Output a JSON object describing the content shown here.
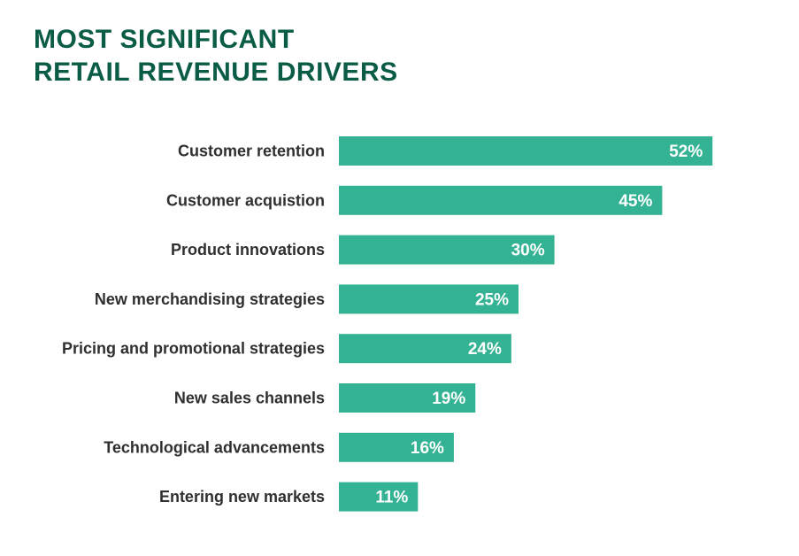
{
  "title_lines": [
    "MOST SIGNIFICANT",
    "RETAIL REVENUE DRIVERS"
  ],
  "colors": {
    "title": "#0b5c45",
    "bar": "#34b394",
    "label": "#2f2f2f",
    "value_text": "#ffffff"
  },
  "chart_data": {
    "type": "bar",
    "orientation": "horizontal",
    "title": "MOST SIGNIFICANT RETAIL REVENUE DRIVERS",
    "categories": [
      "Customer retention",
      "Customer acquistion",
      "Product innovations",
      "New merchandising strategies",
      "Pricing and promotional strategies",
      "New sales channels",
      "Technological advancements",
      "Entering new markets"
    ],
    "values": [
      52,
      45,
      30,
      25,
      24,
      19,
      16,
      11
    ],
    "value_labels": [
      "52%",
      "45%",
      "30%",
      "25%",
      "24%",
      "19%",
      "16%",
      "11%"
    ],
    "unit": "%",
    "grid": false,
    "axes_shown": false
  }
}
